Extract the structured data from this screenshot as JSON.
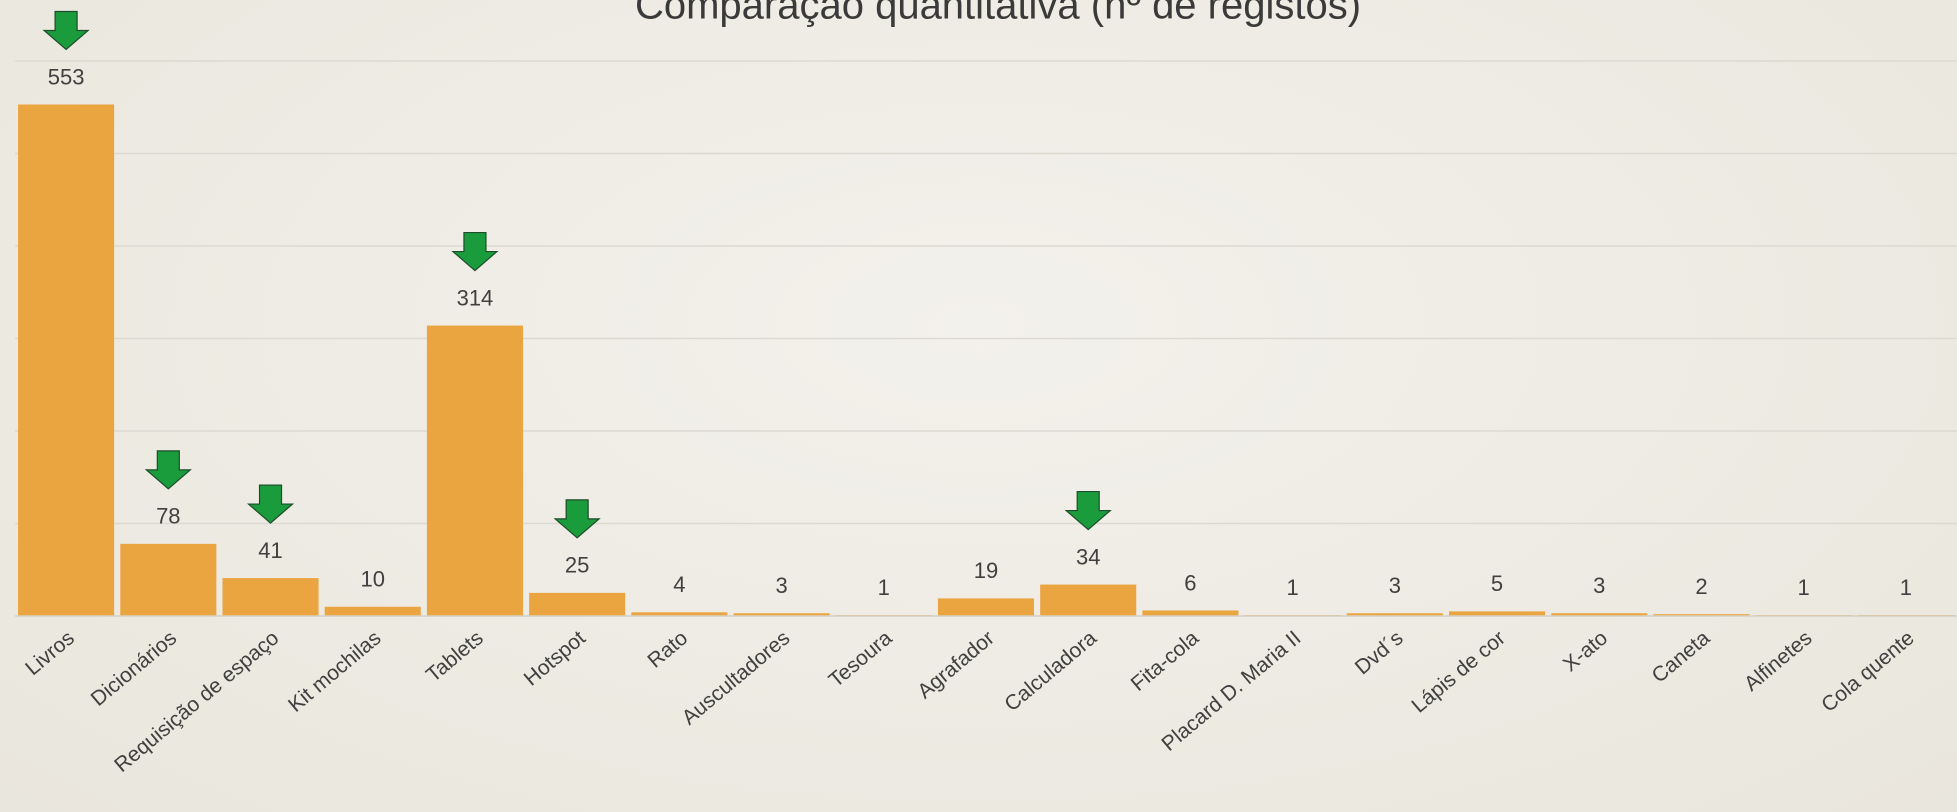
{
  "chart_data": {
    "type": "bar",
    "title": "Comparação quantitativa (nº de registos)",
    "categories": [
      "Livros",
      "Dicionários",
      "Requisição de espaço",
      "Kit mochilas",
      "Tablets",
      "Hotspot",
      "Rato",
      "Auscultadores",
      "Tesoura",
      "Agrafador",
      "Calculadora",
      "Fita-cola",
      "Placard D. Maria II",
      "Dvd´s",
      "Lápis de cor",
      "X-ato",
      "Caneta",
      "Alfinetes",
      "Cola quente"
    ],
    "values": [
      553,
      78,
      41,
      10,
      314,
      25,
      4,
      3,
      1,
      19,
      34,
      6,
      1,
      3,
      5,
      3,
      2,
      1,
      1
    ],
    "color": "#eba540",
    "ylim": [
      0,
      600
    ],
    "yticks": [
      0,
      100,
      200,
      300,
      400,
      500,
      600
    ],
    "grid": true,
    "highlighted": [
      0,
      1,
      2,
      4,
      5,
      10
    ],
    "highlight_color": "#1a9b3c"
  }
}
